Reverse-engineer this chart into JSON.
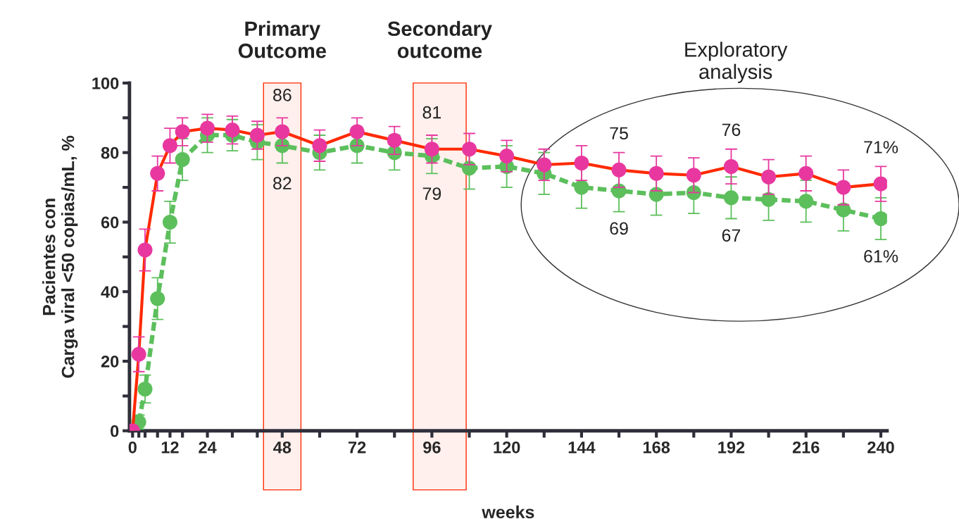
{
  "chart_data": {
    "type": "line",
    "xlabel": "weeks",
    "ylabel": "Pacientes con\nCarga viral <50 copias/mL, %",
    "x": [
      0,
      2,
      4,
      8,
      12,
      16,
      24,
      32,
      40,
      48,
      60,
      72,
      84,
      96,
      108,
      120,
      132,
      144,
      156,
      168,
      180,
      192,
      204,
      216,
      228,
      240
    ],
    "series": [
      {
        "color": "#ff2a00",
        "colors": [
          "#e8389f",
          "#e8389f",
          "#e8389f",
          "#e8389f",
          "#e8389f",
          "#e8389f",
          "#e8389f",
          "#e8389f",
          "#e8389f",
          "#e8389f",
          "#e8389f",
          "#e8389f",
          "#e8389f",
          "#e8389f",
          "#e8389f",
          "#e8389f",
          "#e8389f",
          "#e8389f",
          "#e8389f",
          "#e8389f",
          "#e8389f",
          "#e8389f",
          "#e8389f",
          "#e8389f",
          "#e8389f",
          "#e8389f"
        ],
        "line_style": "solid",
        "values": [
          0,
          22,
          52,
          74,
          82,
          86,
          87,
          86.5,
          85,
          86,
          82,
          86,
          83.5,
          81,
          81,
          79,
          76.5,
          77,
          75,
          74,
          73.5,
          76,
          73,
          74,
          70,
          71
        ],
        "errors": [
          null,
          5,
          6,
          5,
          5,
          4,
          4,
          4,
          4,
          4,
          4.5,
          4,
          4,
          4,
          4.5,
          4.5,
          4.5,
          5,
          5,
          5,
          5,
          5,
          5,
          5,
          5,
          5
        ]
      },
      {
        "color": "#5cbf5c",
        "line_style": "dashed",
        "values": [
          null,
          2.5,
          12,
          38,
          60,
          78,
          85,
          85,
          83,
          82,
          80,
          82,
          80,
          79,
          75.5,
          76,
          74,
          70,
          69,
          68,
          68.5,
          67,
          66.5,
          66,
          63.5,
          61
        ],
        "errors": [
          null,
          2,
          4,
          6,
          6,
          6,
          5,
          4.5,
          5,
          5,
          5,
          5,
          5,
          5,
          6,
          6,
          6,
          6,
          6,
          6,
          6,
          6,
          6,
          6,
          6,
          6
        ]
      }
    ],
    "xlim": [
      -1,
      242
    ],
    "ylim": [
      0,
      100
    ],
    "xticks": [
      0,
      {
        "value": 2,
        "label": null
      },
      {
        "value": 4,
        "label": null
      },
      {
        "value": 8,
        "label": null
      },
      12,
      {
        "value": 16,
        "label": null
      },
      24,
      {
        "value": 32,
        "label": null
      },
      {
        "value": 40,
        "label": null
      },
      48,
      {
        "value": 60,
        "label": null
      },
      72,
      {
        "value": 84,
        "label": null
      },
      96,
      {
        "value": 108,
        "label": null
      },
      120,
      {
        "value": 132,
        "label": null
      },
      144,
      {
        "value": 156,
        "label": null
      },
      168,
      {
        "value": 180,
        "label": null
      },
      192,
      {
        "value": 204,
        "label": null
      },
      216,
      {
        "value": 228,
        "label": null
      },
      240
    ],
    "yticks": [
      0,
      {
        "value": 10,
        "label": null
      },
      20,
      {
        "value": 30,
        "label": null
      },
      40,
      {
        "value": 50,
        "label": null
      },
      60,
      {
        "value": 70,
        "label": null
      },
      80,
      {
        "value": 90,
        "label": null
      },
      100
    ],
    "marker": "circle",
    "grid": false,
    "bands": [
      {
        "axis": "x",
        "from": 42,
        "to": 54,
        "label": "Primary\nOutcome",
        "color": "#ff2a00"
      },
      {
        "axis": "x",
        "from": 90,
        "to": 107,
        "label": "Secondary\noutcome",
        "color": "#ff2a00"
      }
    ],
    "annotations": [
      "Exploratory\nanalysis",
      {
        "text": "86",
        "x": 48,
        "y": 86
      },
      {
        "text": "82",
        "x": 48,
        "y": 82
      },
      {
        "text": "81",
        "x": 96,
        "y": 81
      },
      {
        "text": "79",
        "x": 96,
        "y": 79
      },
      {
        "text": "75",
        "x": 156,
        "y": 75
      },
      {
        "text": "69",
        "x": 156,
        "y": 69
      },
      {
        "text": "76",
        "x": 192,
        "y": 76
      },
      {
        "text": "67",
        "x": 192,
        "y": 67
      },
      {
        "text": "71%",
        "x": 240,
        "y": 71
      },
      {
        "text": "61%",
        "x": 240,
        "y": 61
      }
    ]
  }
}
